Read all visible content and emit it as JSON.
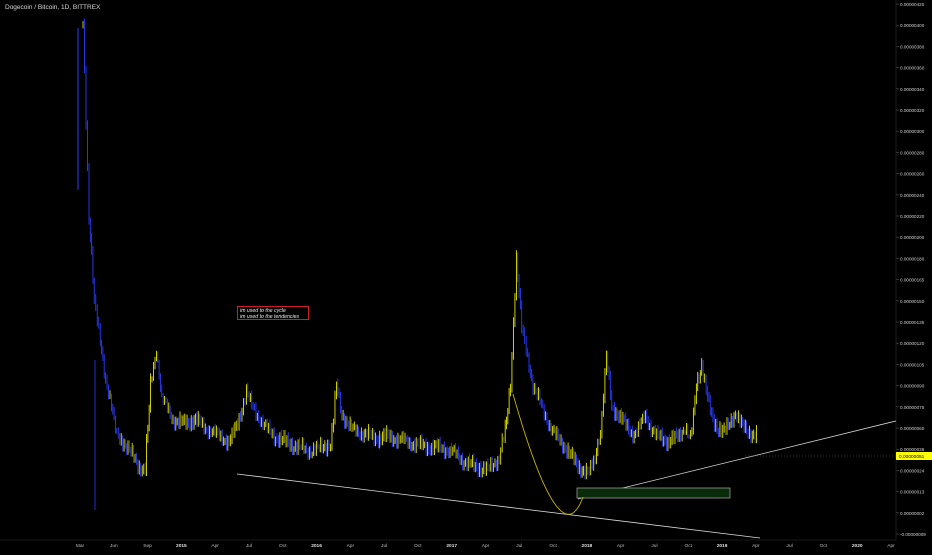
{
  "header": {
    "symbol": "Dogecoin / Bitcoin, 1D, BITTREX"
  },
  "annotation": {
    "lines": [
      "im used to the cycle",
      "im used to the tendencies"
    ]
  },
  "colors": {
    "up": "#e6e600",
    "down": "#2a3cff",
    "trendline": "#d9d9d9",
    "box_stroke": "#aaaaaa",
    "box_fill": "#0a2b0a",
    "curve": "#c8b400",
    "price_tag_bg": "#ffff00",
    "annotation_border": "#cc1f1f"
  },
  "chart_data": {
    "type": "line",
    "title": "Dogecoin / Bitcoin, 1D, BITTREX",
    "xlabel": "",
    "ylabel": "",
    "grid": false,
    "ylim": [
      -9e-08,
      4.2e-06
    ],
    "x_ticks": [
      "Mar",
      "Jun",
      "Sep",
      "2015",
      "Apr",
      "Jul",
      "Oct",
      "2016",
      "Apr",
      "Jul",
      "Oct",
      "2017",
      "Apr",
      "Jul",
      "Oct",
      "2018",
      "Apr",
      "Jul",
      "Oct",
      "2019",
      "Apr",
      "Jul",
      "Oct",
      "2020",
      "Apr"
    ],
    "y_ticks": [
      "0.00000420",
      "0.00000400",
      "0.00000380",
      "0.00000360",
      "0.00000340",
      "0.00000320",
      "0.00000300",
      "0.00000280",
      "0.00000260",
      "0.00000240",
      "0.00000220",
      "0.00000200",
      "0.00000180",
      "0.00000165",
      "0.00000150",
      "0.00000135",
      "0.00000120",
      "0.00000105",
      "0.00000090",
      "0.00000075",
      "0.00000060",
      "0.00000036",
      "0.00000024",
      "0.00000013",
      "0.00000002",
      "-0.00000009"
    ],
    "last_price": "0.00000051",
    "series": [
      {
        "values": [
          [
            "Mar 2014",
            4e-06
          ],
          [
            "Mar 2014",
            2.2e-06
          ],
          [
            "Apr 2014",
            1.5e-06
          ],
          [
            "Apr 2014",
            1.2e-06
          ],
          [
            "May 2014",
            9.5e-07
          ],
          [
            "May 2014",
            7.5e-07
          ],
          [
            "Jun 2014",
            5e-07
          ],
          [
            "Jun 2014",
            4.5e-07
          ],
          [
            "Jul 2014",
            3.6e-07
          ],
          [
            "Aug 2014",
            2.6e-07
          ],
          [
            "Aug 2014",
            2.4e-07
          ],
          [
            "Sep 2014",
            9e-07
          ],
          [
            "Sep 2014",
            1.15e-06
          ],
          [
            "Oct 2014",
            8e-07
          ],
          [
            "Nov 2014",
            6.5e-07
          ],
          [
            "Dec 2014",
            6.3e-07
          ],
          [
            "Jan 2015",
            6.6e-07
          ],
          [
            "Feb 2015",
            5.8e-07
          ],
          [
            "Mar 2015",
            5e-07
          ],
          [
            "Apr 2015",
            4.4e-07
          ],
          [
            "May 2015",
            7e-07
          ],
          [
            "May 2015",
            8.5e-07
          ],
          [
            "Jun 2015",
            7.5e-07
          ],
          [
            "Jul 2015",
            6.2e-07
          ],
          [
            "Aug 2015",
            5e-07
          ],
          [
            "Sep 2015",
            4.4e-07
          ],
          [
            "Oct 2015",
            3.8e-07
          ],
          [
            "Nov 2015",
            3.4e-07
          ],
          [
            "Dec 2015",
            3.6e-07
          ],
          [
            "Jan 2016",
            4.2e-07
          ],
          [
            "Jan 2016",
            9e-07
          ],
          [
            "Feb 2016",
            7e-07
          ],
          [
            "Mar 2016",
            5.6e-07
          ],
          [
            "Apr 2016",
            5.2e-07
          ],
          [
            "May 2016",
            4.8e-07
          ],
          [
            "Jun 2016",
            5e-07
          ],
          [
            "Jul 2016",
            4.6e-07
          ],
          [
            "Aug 2016",
            4.2e-07
          ],
          [
            "Sep 2016",
            4e-07
          ],
          [
            "Oct 2016",
            3.8e-07
          ],
          [
            "Nov 2016",
            3.6e-07
          ],
          [
            "Dec 2016",
            3.3e-07
          ],
          [
            "Jan 2017",
            2.8e-07
          ],
          [
            "Feb 2017",
            2.6e-07
          ],
          [
            "Mar 2017",
            2.4e-07
          ],
          [
            "Apr 2017",
            3e-07
          ],
          [
            "Apr 2017",
            5.5e-07
          ],
          [
            "May 2017",
            9e-07
          ],
          [
            "May 2017",
            1.8e-06
          ],
          [
            "Jun 2017",
            1.3e-06
          ],
          [
            "Jun 2017",
            1.1e-06
          ],
          [
            "Jul 2017",
            9e-07
          ],
          [
            "Aug 2017",
            7e-07
          ],
          [
            "Sep 2017",
            5e-07
          ],
          [
            "Oct 2017",
            3.6e-07
          ],
          [
            "Nov 2017",
            2.6e-07
          ],
          [
            "Dec 2017",
            2.2e-07
          ],
          [
            "Dec 2017",
            3e-07
          ],
          [
            "Jan 2018",
            5.5e-07
          ],
          [
            "Jan 2018",
            1.1e-06
          ],
          [
            "Feb 2018",
            7.5e-07
          ],
          [
            "Mar 2018",
            6.5e-07
          ],
          [
            "Apr 2018",
            5.2e-07
          ],
          [
            "May 2018",
            6.8e-07
          ],
          [
            "Jun 2018",
            5e-07
          ],
          [
            "Jul 2018",
            4.5e-07
          ],
          [
            "Aug 2018",
            5e-07
          ],
          [
            "Aug 2018",
            6e-07
          ],
          [
            "Sep 2018",
            4.5e-07
          ],
          [
            "Sep 2018",
            9e-07
          ],
          [
            "Oct 2018",
            1.05e-06
          ],
          [
            "Oct 2018",
            8e-07
          ],
          [
            "Nov 2018",
            6.5e-07
          ],
          [
            "Dec 2018",
            5.5e-07
          ],
          [
            "Jan 2019",
            7e-07
          ],
          [
            "Jan 2019",
            6.2e-07
          ],
          [
            "Feb 2019",
            5.5e-07
          ],
          [
            "Mar 2019",
            5.1e-07
          ]
        ]
      }
    ]
  }
}
